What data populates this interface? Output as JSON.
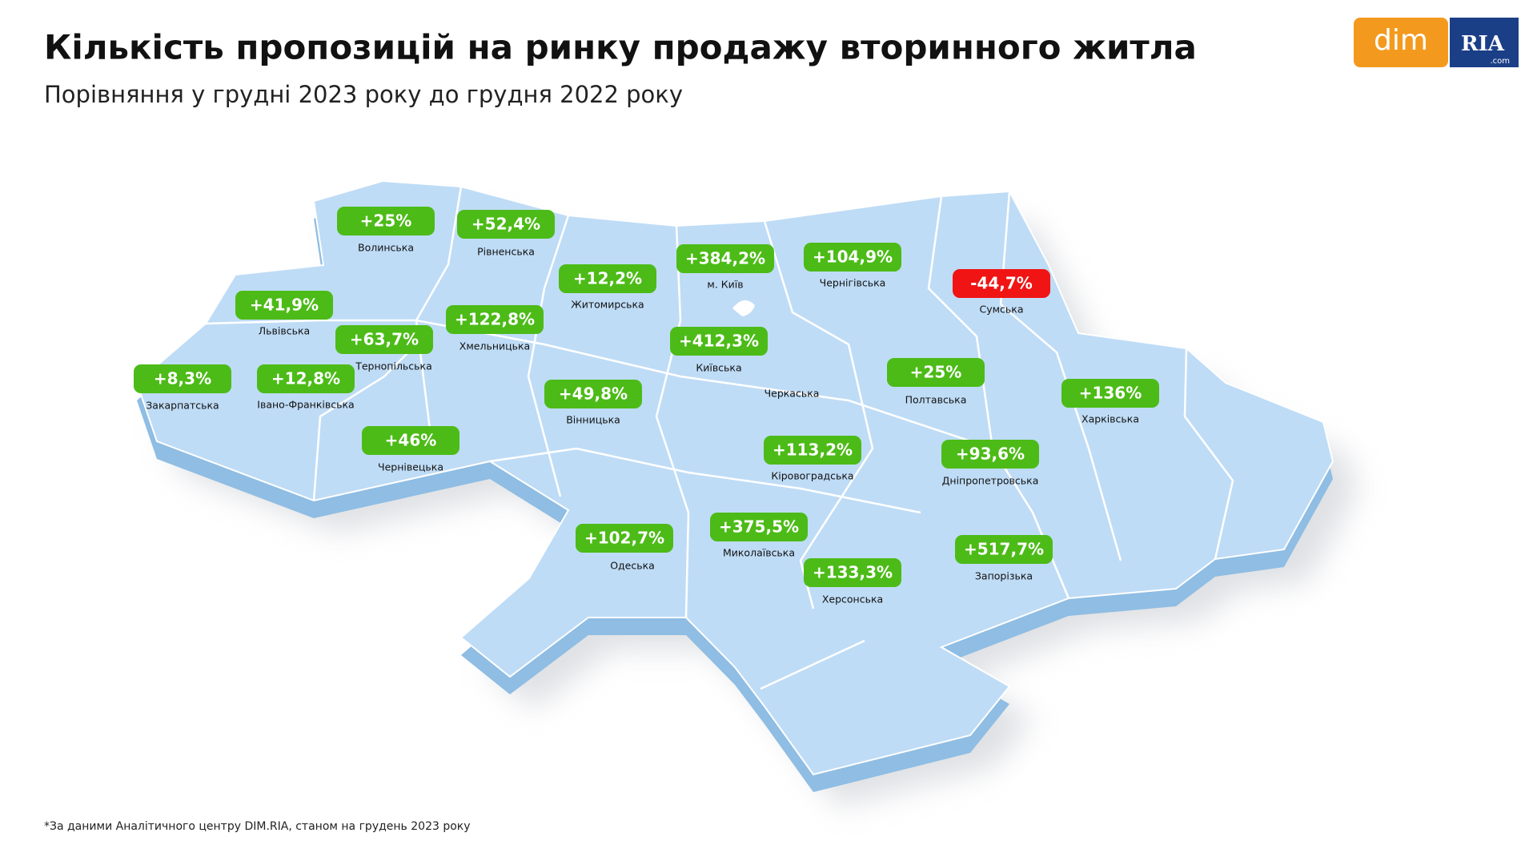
{
  "header": {
    "title": "Кількість пропозицій на ринку продажу вторинного житла",
    "subtitle": "Порівняння у грудні 2023 року до грудня 2022 року"
  },
  "logo": {
    "left": "dim",
    "right": "RIA",
    "suffix": ".com"
  },
  "regions": [
    {
      "name": "Волинська",
      "label": "+25%",
      "color": "#4cbb17"
    },
    {
      "name": "Рівненська",
      "label": "+52,4%",
      "color": "#4cbb17"
    },
    {
      "name": "Львівська",
      "label": "+41,9%",
      "color": "#4cbb17"
    },
    {
      "name": "Тернопільська",
      "label": "+63,7%",
      "color": "#4cbb17"
    },
    {
      "name": "Хмельницька",
      "label": "+122,8%",
      "color": "#4cbb17"
    },
    {
      "name": "Закарпатська",
      "label": "+8,3%",
      "color": "#4cbb17"
    },
    {
      "name": "Івано-Франківська",
      "label": "+12,8%",
      "color": "#4cbb17"
    },
    {
      "name": "Чернівецька",
      "label": "+46%",
      "color": "#4cbb17"
    },
    {
      "name": "Житомирська",
      "label": "+12,2%",
      "color": "#4cbb17"
    },
    {
      "name": "м. Київ",
      "label": "+384,2%",
      "color": "#4cbb17"
    },
    {
      "name": "Київська",
      "label": "+412,3%",
      "color": "#4cbb17"
    },
    {
      "name": "Чернігівська",
      "label": "+104,9%",
      "color": "#4cbb17"
    },
    {
      "name": "Сумська",
      "label": "-44,7%",
      "color": "#f01414"
    },
    {
      "name": "Полтавська",
      "label": "+25%",
      "color": "#4cbb17"
    },
    {
      "name": "Харківська",
      "label": "+136%",
      "color": "#4cbb17"
    },
    {
      "name": "Черкаська"
    },
    {
      "name": "Вінницька",
      "label": "+49,8%",
      "color": "#4cbb17"
    },
    {
      "name": "Кіровоградська",
      "label": "+113,2%",
      "color": "#4cbb17"
    },
    {
      "name": "Дніпропетровська",
      "label": "+93,6%",
      "color": "#4cbb17"
    },
    {
      "name": "Одеська",
      "label": "+102,7%",
      "color": "#4cbb17"
    },
    {
      "name": "Миколаївська",
      "label": "+375,5%",
      "color": "#4cbb17"
    },
    {
      "name": "Херсонська",
      "label": "+133,3%",
      "color": "#4cbb17"
    },
    {
      "name": "Запорізька",
      "label": "+517,7%",
      "color": "#4cbb17"
    }
  ],
  "footnote": "*За даними Аналітичного центру DIM.RIA, станом на грудень 2023 року"
}
